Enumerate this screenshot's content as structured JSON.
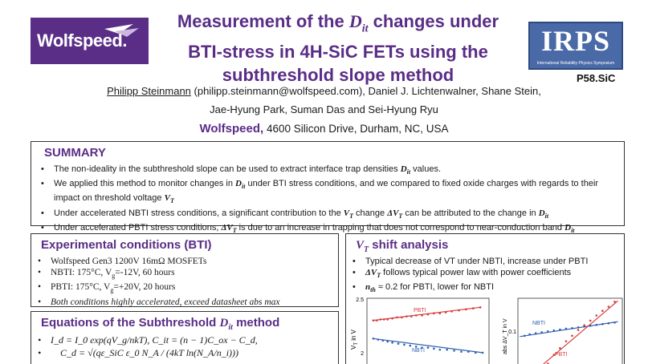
{
  "logos": {
    "wolfspeed": "Wolfspeed.",
    "irps": "IRPS",
    "irps_sub": "International Reliability Physics Symposium"
  },
  "poster_id": "P58.SiC",
  "title": {
    "line1_pre": "Measurement of the ",
    "line1_sym": "D",
    "line1_sub": "it",
    "line1_post": " changes under",
    "line2": "BTI-stress in 4H-SiC FETs using the",
    "line3": "subthreshold slope method"
  },
  "authors": {
    "first_author": "Philipp Steinmann",
    "line1_rest": " (philipp.steinmann@wolfspeed.com), Daniel J. Lichtenwalner, Shane Stein,",
    "line2": "Jae-Hyung Park, Suman Das and Sei-Hyung Ryu"
  },
  "affiliation": {
    "org": "Wolfspeed,",
    "address": " 4600 Silicon Drive, Durham, NC, USA"
  },
  "summary": {
    "heading": "SUMMARY",
    "b1_pre": "The non-ideality in the subthreshold slope can be used to extract interface trap densities ",
    "b1_post": " values.",
    "b2_pre": "We applied this method to monitor changes in ",
    "b2_mid": " under BTI stress conditions, and we compared to fixed oxide charges with regards to their impact on threshold voltage ",
    "b3_pre": "Under accelerated NBTI stress conditions, a significant contribution to the ",
    "b3_mid1": " change ",
    "b3_mid2": " can be attributed to the change in ",
    "b4_pre": "Under accelerated PBTI stress conditions, ",
    "b4_mid": " is due to an increase in trapping that does not correspond to near-conduction band "
  },
  "experimental": {
    "heading": "Experimental conditions (BTI)",
    "b1": "Wolfspeed Gen3 1200V 16mΩ MOSFETs",
    "b2_a": "NBTI: 175°C, V",
    "b2_b": "=-12V, 60 hours",
    "b3_a": "PBTI: 175°C, V",
    "b3_b": "=+20V, 20 hours",
    "b4": "Both conditions highly accelerated, exceed datasheet abs max"
  },
  "equations": {
    "heading_pre": "Equations of the Subthreshold ",
    "heading_post": " method",
    "eq1": "I_d = I_0 exp(qV_g/nkT),   C_it = (n − 1)C_ox − C_d,",
    "eq2": "C_d = √(qε_SiC ε_0 N_A / (4kT ln(N_A/n_i)))"
  },
  "vt_shift": {
    "heading_post": " shift analysis",
    "b1": "Typical decrease of VT under NBTI, increase under PBTI",
    "b2_post": " follows typical power law with power coefficients",
    "b3_post": " ≈ 0.2 for PBTI, lower for NBTI"
  },
  "symbols": {
    "Dit_D": "D",
    "Dit_sub": "it",
    "VT_V": "V",
    "VT_sub": "T",
    "dVT_pre": "ΔV",
    "n_th": "n",
    "n_sub": "th",
    "g_sub": "g"
  },
  "chart_data": [
    {
      "type": "scatter",
      "title": "",
      "ylabel": "V_T in V",
      "y_ticks": [
        "2.5",
        "2"
      ],
      "ylim": [
        1.85,
        2.55
      ],
      "series": [
        {
          "name": "PBTI",
          "color": "#d83a3a",
          "x": [
            0.04,
            0.07,
            0.1,
            0.13,
            0.16,
            0.2,
            0.24,
            0.28,
            0.32,
            0.36,
            0.4,
            0.45,
            0.5,
            0.55,
            0.6,
            0.65,
            0.7,
            0.76,
            0.82,
            0.88,
            0.94
          ],
          "values": [
            2.33,
            2.33,
            2.34,
            2.34,
            2.34,
            2.35,
            2.36,
            2.36,
            2.37,
            2.37,
            2.38,
            2.38,
            2.39,
            2.4,
            2.4,
            2.41,
            2.42,
            2.43,
            2.44,
            2.45,
            2.46
          ]
        },
        {
          "name": "NBTI",
          "color": "#2f5fb3",
          "x": [
            0.04,
            0.08,
            0.12,
            0.16,
            0.2,
            0.25,
            0.3,
            0.35,
            0.4,
            0.45,
            0.5,
            0.55,
            0.6,
            0.66,
            0.72,
            0.78,
            0.84,
            0.9,
            0.96
          ],
          "values": [
            2.15,
            2.14,
            2.13,
            2.12,
            2.11,
            2.1,
            2.09,
            2.08,
            2.07,
            2.06,
            2.06,
            2.05,
            2.04,
            2.04,
            2.03,
            2.02,
            2.02,
            2.01,
            2.01
          ]
        }
      ]
    },
    {
      "type": "scatter",
      "title": "",
      "ylabel": "abs ΔV_T in V",
      "y_ticks": [
        "0.1"
      ],
      "log_scale": true,
      "series": [
        {
          "name": "NBTI",
          "color": "#2f5fb3",
          "x": [
            0.05,
            0.1,
            0.16,
            0.22,
            0.28,
            0.34,
            0.4,
            0.46,
            0.52,
            0.58,
            0.64,
            0.7,
            0.76,
            0.82,
            0.88,
            0.94
          ],
          "values": [
            0.085,
            0.088,
            0.09,
            0.092,
            0.094,
            0.096,
            0.098,
            0.1,
            0.101,
            0.103,
            0.105,
            0.107,
            0.109,
            0.111,
            0.113,
            0.115
          ]
        },
        {
          "name": "PBTI",
          "color": "#d83a3a",
          "x": [
            0.28,
            0.34,
            0.4,
            0.46,
            0.52,
            0.58,
            0.64,
            0.7,
            0.76,
            0.82,
            0.88,
            0.94
          ],
          "values": [
            0.045,
            0.055,
            0.064,
            0.075,
            0.085,
            0.097,
            0.108,
            0.12,
            0.135,
            0.15,
            0.165,
            0.185
          ]
        }
      ]
    }
  ]
}
